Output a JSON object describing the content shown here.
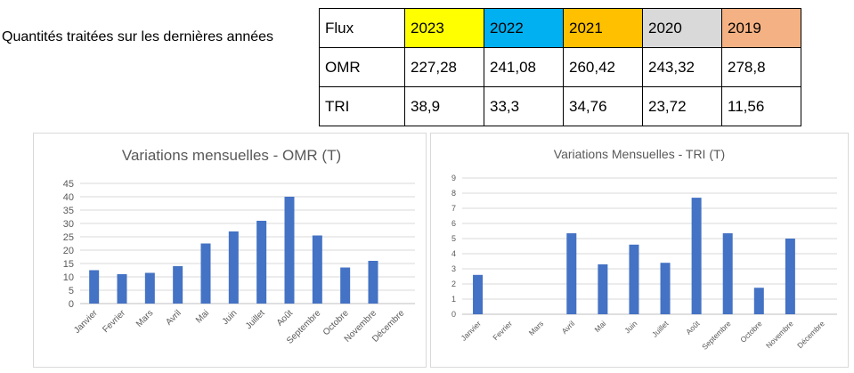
{
  "heading": "Quantités traitées sur les dernières années",
  "summary_table": {
    "header_label": "Flux",
    "years": [
      {
        "label": "2023",
        "color": "#ffff00"
      },
      {
        "label": "2022",
        "color": "#00b0f0"
      },
      {
        "label": "2021",
        "color": "#ffc000"
      },
      {
        "label": "2020",
        "color": "#d9d9d9"
      },
      {
        "label": "2019",
        "color": "#f4b183"
      }
    ],
    "rows": [
      {
        "label": "OMR",
        "values": [
          "227,28",
          "241,08",
          "260,42",
          "243,32",
          "278,8"
        ]
      },
      {
        "label": "TRI",
        "values": [
          "38,9",
          "33,3",
          "34,76",
          "23,72",
          "11,56"
        ]
      }
    ]
  },
  "chart_data": [
    {
      "type": "bar",
      "title": "Variations mensuelles - OMR (T)",
      "categories": [
        "Janvier",
        "Fevrier",
        "Mars",
        "Avril",
        "Mai",
        "Juin",
        "Juillet",
        "Août",
        "Septembre",
        "Octobre",
        "Novembre",
        "Décembre"
      ],
      "values": [
        12.5,
        11,
        11.5,
        14,
        22.5,
        27,
        31,
        40,
        25.5,
        13.5,
        16,
        null
      ],
      "ylim": [
        0,
        45
      ],
      "yticks": [
        0,
        5,
        10,
        15,
        20,
        25,
        30,
        35,
        40,
        45
      ],
      "grid": true,
      "bar_color": "#4472c4"
    },
    {
      "type": "bar",
      "title": "Variations Mensuelles - TRI (T)",
      "categories": [
        "Janvier",
        "Fevrier",
        "Mars",
        "Avril",
        "Mai",
        "Juin",
        "Juillet",
        "Août",
        "Septembre",
        "Octobre",
        "Novembre",
        "Décembre"
      ],
      "values": [
        2.6,
        null,
        null,
        5.35,
        3.3,
        4.6,
        3.4,
        7.7,
        5.35,
        1.75,
        5.0,
        null
      ],
      "ylim": [
        0,
        9
      ],
      "yticks": [
        0,
        1,
        2,
        3,
        4,
        5,
        6,
        7,
        8,
        9
      ],
      "grid": true,
      "bar_color": "#4472c4"
    }
  ]
}
